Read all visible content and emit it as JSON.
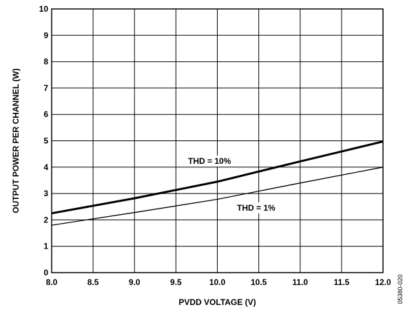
{
  "chart_data": {
    "type": "line",
    "title": "",
    "xlabel": "PVDD VOLTAGE (V)",
    "ylabel": "OUTPUT POWER PER CHANNEL (W)",
    "xlim": [
      8.0,
      12.0
    ],
    "ylim": [
      0,
      10
    ],
    "x_ticks": [
      "8.0",
      "8.5",
      "9.0",
      "9.5",
      "10.0",
      "10.5",
      "11.0",
      "11.5",
      "12.0"
    ],
    "y_ticks": [
      "0",
      "1",
      "2",
      "3",
      "4",
      "5",
      "6",
      "7",
      "8",
      "9",
      "10"
    ],
    "grid": true,
    "series": [
      {
        "name": "THD = 10%",
        "style": "thick",
        "x": [
          8.0,
          9.0,
          10.0,
          11.0,
          12.0
        ],
        "y": [
          2.25,
          2.82,
          3.45,
          4.22,
          4.97
        ]
      },
      {
        "name": "THD = 1%",
        "style": "thin",
        "x": [
          8.0,
          9.0,
          10.0,
          11.0,
          12.0
        ],
        "y": [
          1.8,
          2.28,
          2.78,
          3.4,
          4.0
        ]
      }
    ],
    "figure_id": "05380-020"
  }
}
